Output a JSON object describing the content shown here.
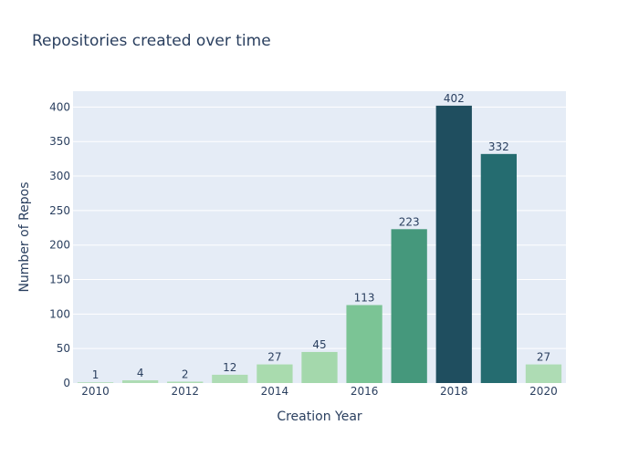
{
  "chart_data": {
    "type": "bar",
    "title": "Repositories created over time",
    "xlabel": "Creation Year",
    "ylabel": "Number of Repos",
    "categories": [
      "2010",
      "2011",
      "2012",
      "2013",
      "2014",
      "2015",
      "2016",
      "2017",
      "2018",
      "2019",
      "2020"
    ],
    "values": [
      1,
      4,
      2,
      12,
      27,
      45,
      113,
      223,
      402,
      332,
      27
    ],
    "x_tick_labels": [
      "2010",
      "2012",
      "2014",
      "2016",
      "2018",
      "2020"
    ],
    "y_ticks": [
      0,
      50,
      100,
      150,
      200,
      250,
      300,
      350,
      400
    ],
    "ylim": [
      0,
      423
    ],
    "grid": true,
    "legend": "none",
    "colors": {
      "plot_background": "#E5ECF6",
      "grid": "#ffffff",
      "text": "#2a3f5f",
      "bars": [
        "#aedcb4",
        "#aedcb4",
        "#aedcb4",
        "#aedcb4",
        "#a9dbae",
        "#a4d8ac",
        "#7bc495",
        "#45987c",
        "#1f4e5f",
        "#256c70",
        "#aedcb4"
      ]
    }
  }
}
